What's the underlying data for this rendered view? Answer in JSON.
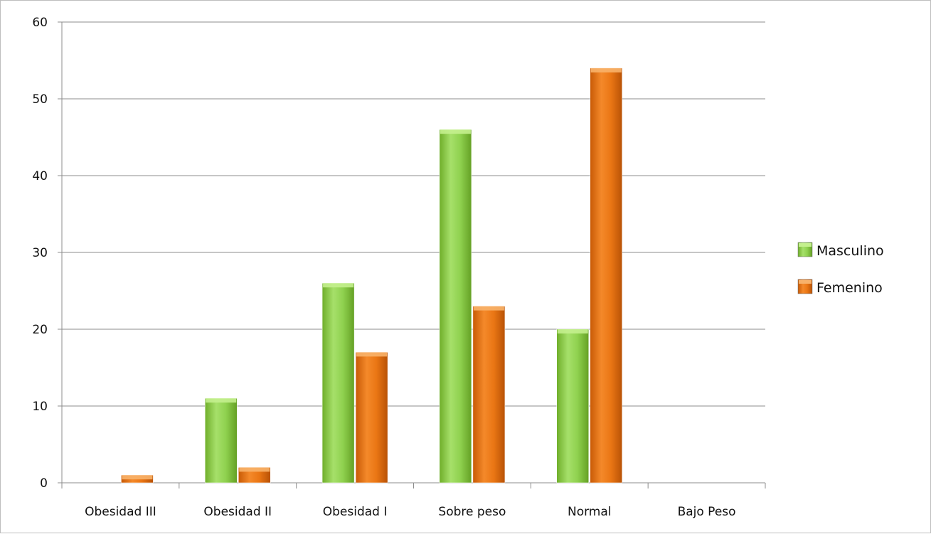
{
  "chart_data": {
    "type": "bar",
    "categories": [
      "Obesidad III",
      "Obesidad II",
      "Obesidad I",
      "Sobre peso",
      "Normal",
      "Bajo Peso"
    ],
    "series": [
      {
        "name": "Masculino",
        "values": [
          0,
          11,
          26,
          46,
          20,
          0
        ],
        "color": "#8fd14f"
      },
      {
        "name": "Femenino",
        "values": [
          1,
          2,
          17,
          23,
          54,
          0
        ],
        "color": "#ea7614"
      }
    ],
    "ylim": [
      0,
      60
    ],
    "yticks": [
      0,
      10,
      20,
      30,
      40,
      50,
      60
    ],
    "grid": true,
    "legend": "right"
  }
}
